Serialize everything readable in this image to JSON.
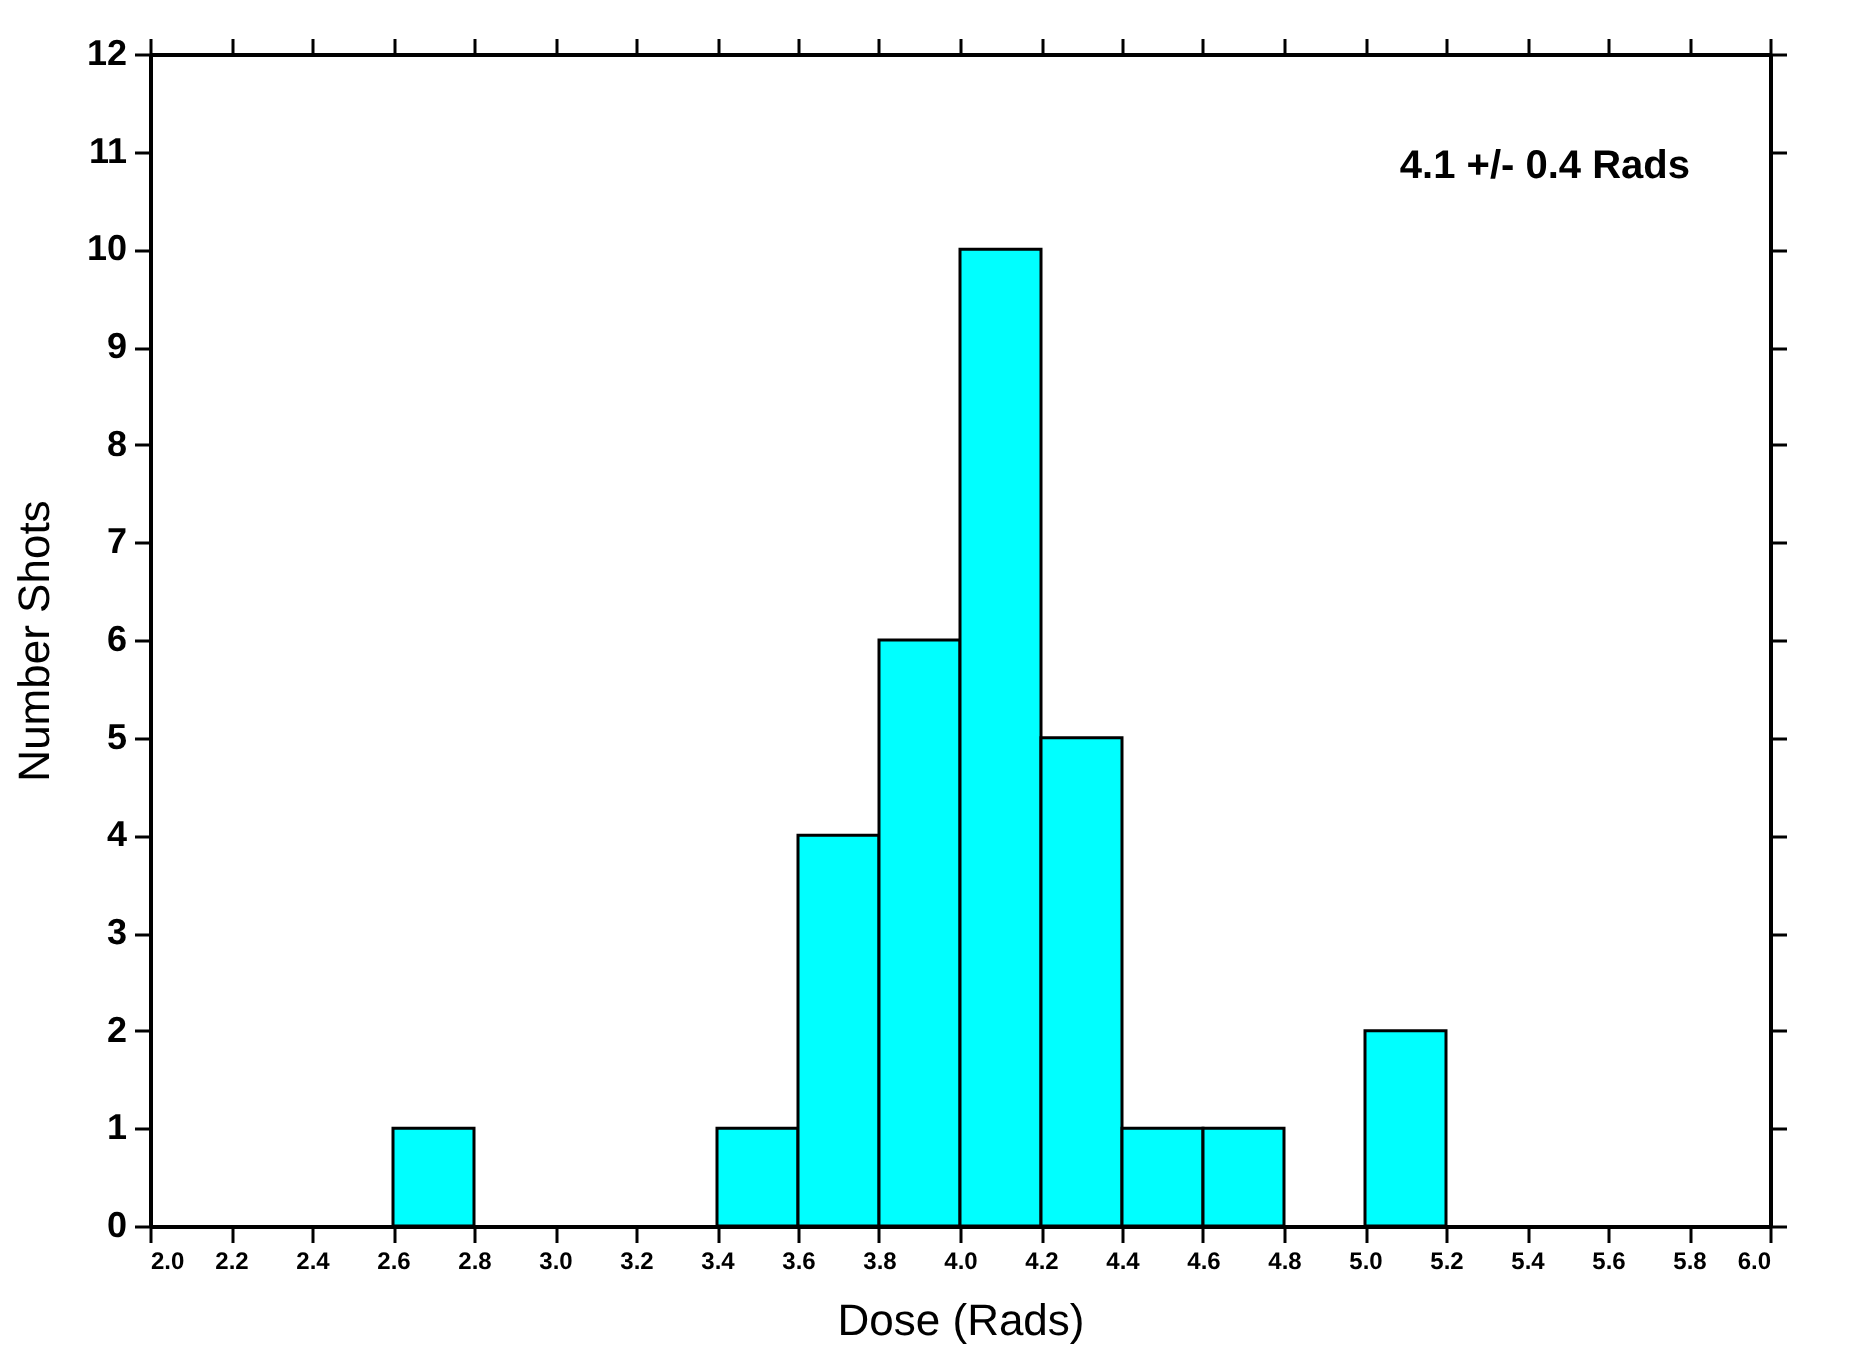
{
  "chart_data": {
    "type": "histogram",
    "xlabel": "Dose (Rads)",
    "ylabel": "Number Shots",
    "bins": [
      2.0,
      2.2,
      2.4,
      2.6,
      2.8,
      3.0,
      3.2,
      3.4,
      3.6,
      3.8,
      4.0,
      4.2,
      4.4,
      4.6,
      4.8,
      5.0,
      5.2,
      5.4,
      5.6,
      5.8,
      6.0
    ],
    "values": [
      0,
      0,
      0,
      1,
      0,
      0,
      0,
      1,
      4,
      6,
      10,
      5,
      1,
      1,
      0,
      2,
      0,
      0,
      0,
      0
    ],
    "color": "#00ffff",
    "xlim": [
      2.0,
      6.0
    ],
    "xticks": [
      {
        "value": 2,
        "label": "2.0"
      },
      {
        "value": 2.2,
        "label": "2.2"
      },
      {
        "value": 2.4,
        "label": "2.4"
      },
      {
        "value": 2.6,
        "label": "2.6"
      },
      {
        "value": 2.8,
        "label": "2.8"
      },
      {
        "value": 3,
        "label": "3.0"
      },
      {
        "value": 3.2,
        "label": "3.2"
      },
      {
        "value": 3.4,
        "label": "3.4"
      },
      {
        "value": 3.6,
        "label": "3.6"
      },
      {
        "value": 3.8,
        "label": "3.8"
      },
      {
        "value": 4,
        "label": "4.0"
      },
      {
        "value": 4.2,
        "label": "4.2"
      },
      {
        "value": 4.4,
        "label": "4.4"
      },
      {
        "value": 4.6,
        "label": "4.6"
      },
      {
        "value": 4.8,
        "label": "4.8"
      },
      {
        "value": 5,
        "label": "5.0"
      },
      {
        "value": 5.2,
        "label": "5.2"
      },
      {
        "value": 5.4,
        "label": "5.4"
      },
      {
        "value": 5.6,
        "label": "5.6"
      },
      {
        "value": 5.8,
        "label": "5.8"
      },
      {
        "value": 6,
        "label": "6.0"
      }
    ],
    "ylim": [
      0,
      12
    ],
    "yticks": [
      0,
      1,
      2,
      3,
      4,
      5,
      6,
      7,
      8,
      9,
      10,
      11,
      12
    ],
    "grid": false,
    "annotations": [
      "4.1 +/- 0.4 Rads"
    ]
  }
}
